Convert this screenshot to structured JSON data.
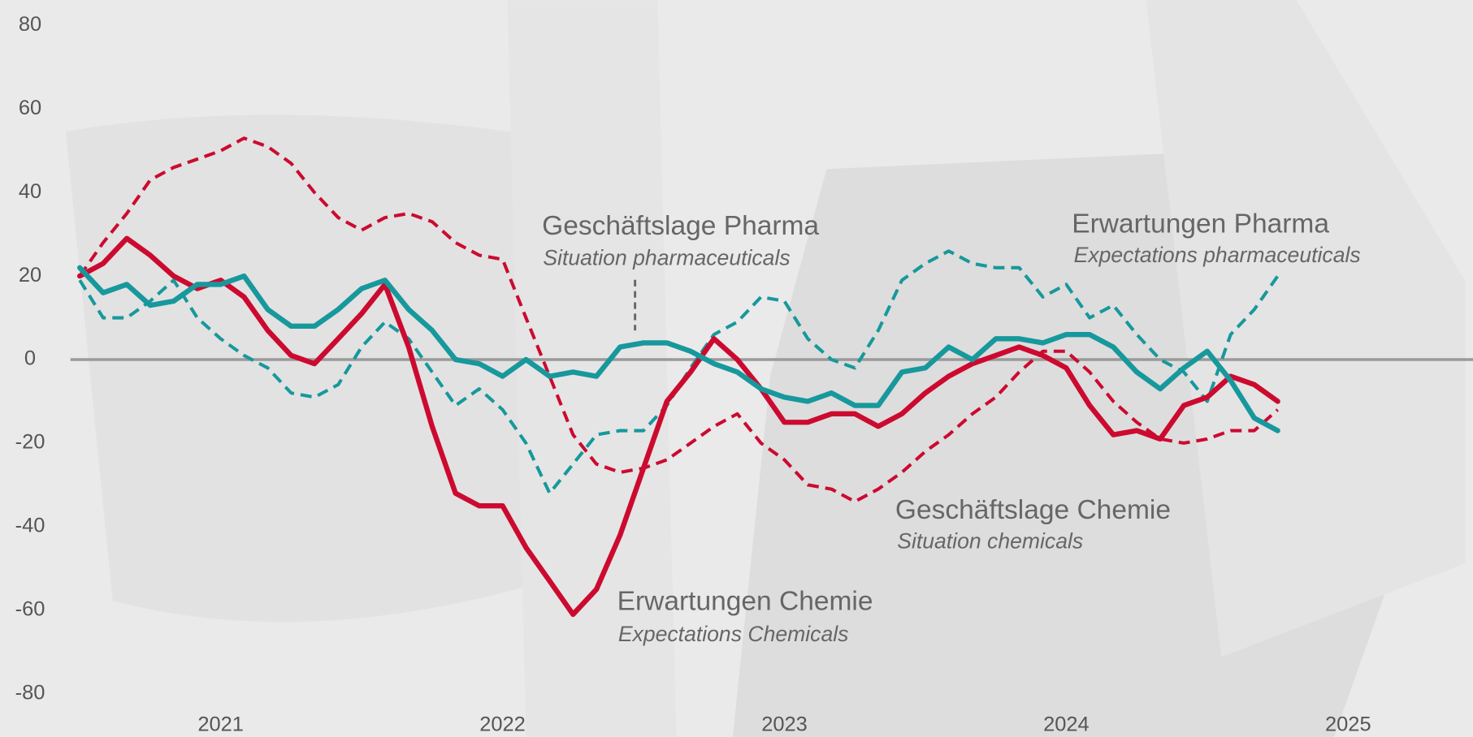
{
  "chart_data": {
    "type": "line",
    "x": [
      2021,
      2021.083,
      2021.167,
      2021.25,
      2021.333,
      2021.417,
      2021.5,
      2021.583,
      2021.667,
      2021.75,
      2021.833,
      2021.917,
      2022,
      2022.083,
      2022.167,
      2022.25,
      2022.333,
      2022.417,
      2022.5,
      2022.583,
      2022.667,
      2022.75,
      2022.833,
      2022.917,
      2023,
      2023.083,
      2023.167,
      2023.25,
      2023.333,
      2023.417,
      2023.5,
      2023.583,
      2023.667,
      2023.75,
      2023.833,
      2023.917,
      2024,
      2024.083,
      2024.167,
      2024.25,
      2024.333,
      2024.417,
      2024.5,
      2024.583,
      2024.667,
      2024.75,
      2024.833,
      2024.917,
      2025,
      2025.083,
      2025.167,
      2025.25
    ],
    "series": [
      {
        "name": "Geschäftslage Chemie",
        "translation": "Situation chemicals",
        "color": "#cc0a2f",
        "dashed": true,
        "values": [
          20,
          28,
          35,
          43,
          46,
          48,
          50,
          53,
          51,
          47,
          40,
          34,
          31,
          34,
          35,
          33,
          28,
          25,
          24,
          10,
          -4,
          -18,
          -25,
          -27,
          -26,
          -24,
          -20,
          -16,
          -13,
          -20,
          -24,
          -30,
          -31,
          -34,
          -31,
          -27,
          -22,
          -18,
          -13,
          -9,
          -3,
          2,
          2,
          -3,
          -10,
          -15,
          -19,
          -20,
          -19,
          -17,
          -17,
          -12
        ]
      },
      {
        "name": "Erwartungen Pharma",
        "translation": "Expectations pharmaceuticals",
        "color": "#17989c",
        "dashed": true,
        "values": [
          19,
          10,
          10,
          14,
          19,
          10,
          5,
          1,
          -2,
          -8,
          -9,
          -6,
          3,
          9,
          5,
          -3,
          -11,
          -7,
          -12,
          -20,
          -32,
          -25,
          -18,
          -17,
          -17,
          -11,
          -2,
          6,
          9,
          15,
          14,
          5,
          0,
          -2,
          7,
          19,
          23,
          26,
          23,
          22,
          22,
          15,
          18,
          10,
          13,
          6,
          0,
          -3,
          -10,
          6,
          12,
          20
        ]
      },
      {
        "name": "Erwartungen Chemie",
        "translation": "Expectations Chemicals",
        "color": "#cc0a2f",
        "dashed": false,
        "values": [
          20,
          23,
          29,
          25,
          20,
          17,
          19,
          15,
          7,
          1,
          -1,
          5,
          11,
          18,
          3,
          -16,
          -32,
          -35,
          -35,
          -45,
          -53,
          -61,
          -55,
          -42,
          -26,
          -10,
          -3,
          5,
          0,
          -7,
          -15,
          -15,
          -13,
          -13,
          -16,
          -13,
          -8,
          -4,
          -1,
          1,
          3,
          1,
          -2,
          -11,
          -18,
          -17,
          -19,
          -11,
          -9,
          -4,
          -6,
          -10
        ]
      },
      {
        "name": "Geschäftslage Pharma",
        "translation": "Situation pharmaceuticals",
        "color": "#17989c",
        "dashed": false,
        "values": [
          22,
          16,
          18,
          13,
          14,
          18,
          18,
          20,
          12,
          8,
          8,
          12,
          17,
          19,
          12,
          7,
          0,
          -1,
          -4,
          0,
          -4,
          -3,
          -4,
          3,
          4,
          4,
          2,
          -1,
          -3,
          -7,
          -9,
          -10,
          -8,
          -11,
          -11,
          -3,
          -2,
          3,
          0,
          5,
          5,
          4,
          6,
          6,
          3,
          -3,
          -7,
          -2,
          2,
          -5,
          -14,
          -17
        ]
      }
    ],
    "xlim": [
      2020.967,
      2025.943
    ],
    "xticks": [
      {
        "value": 2021.5,
        "label": "2021"
      },
      {
        "value": 2022.5,
        "label": "2022"
      },
      {
        "value": 2023.5,
        "label": "2023"
      },
      {
        "value": 2024.5,
        "label": "2024"
      },
      {
        "value": 2025.5,
        "label": "2025"
      }
    ],
    "ylim": [
      -80,
      80
    ],
    "yticks": [
      80,
      60,
      40,
      20,
      0,
      -20,
      -40,
      -60,
      -80
    ],
    "zero_line": true
  }
}
